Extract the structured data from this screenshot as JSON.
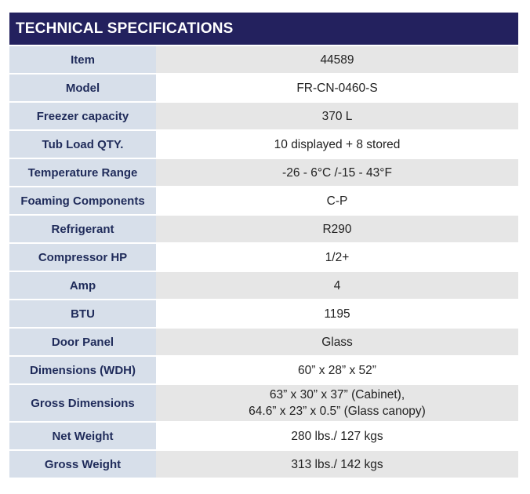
{
  "title": "TECHNICAL SPECIFICATIONS",
  "rows": [
    {
      "label": "Item",
      "value": "44589"
    },
    {
      "label": "Model",
      "value": "FR-CN-0460-S"
    },
    {
      "label": "Freezer capacity",
      "value": "370 L"
    },
    {
      "label": "Tub Load QTY.",
      "value": "10 displayed + 8 stored"
    },
    {
      "label": "Temperature Range",
      "value": "-26 - 6°C /-15 - 43°F"
    },
    {
      "label": "Foaming Components",
      "value": "C-P"
    },
    {
      "label": "Refrigerant",
      "value": "R290"
    },
    {
      "label": "Compressor HP",
      "value": "1/2+"
    },
    {
      "label": "Amp",
      "value": "4"
    },
    {
      "label": "BTU",
      "value": "1195"
    },
    {
      "label": "Door Panel",
      "value": "Glass"
    },
    {
      "label": "Dimensions (WDH)",
      "value": "60” x 28” x 52”"
    },
    {
      "label": "Gross Dimensions",
      "value_line1": "63” x 30” x 37” (Cabinet),",
      "value_line2": "64.6” x 23” x 0.5” (Glass canopy)"
    },
    {
      "label": "Net Weight",
      "value": "280 lbs./ 127 kgs"
    },
    {
      "label": "Gross Weight",
      "value": "313 lbs./ 142 kgs"
    }
  ],
  "colors": {
    "header_bg": "#23215e",
    "label_bg": "#d7dfea",
    "label_text": "#1f2b5a",
    "stripe_bg": "#e6e6e6"
  }
}
